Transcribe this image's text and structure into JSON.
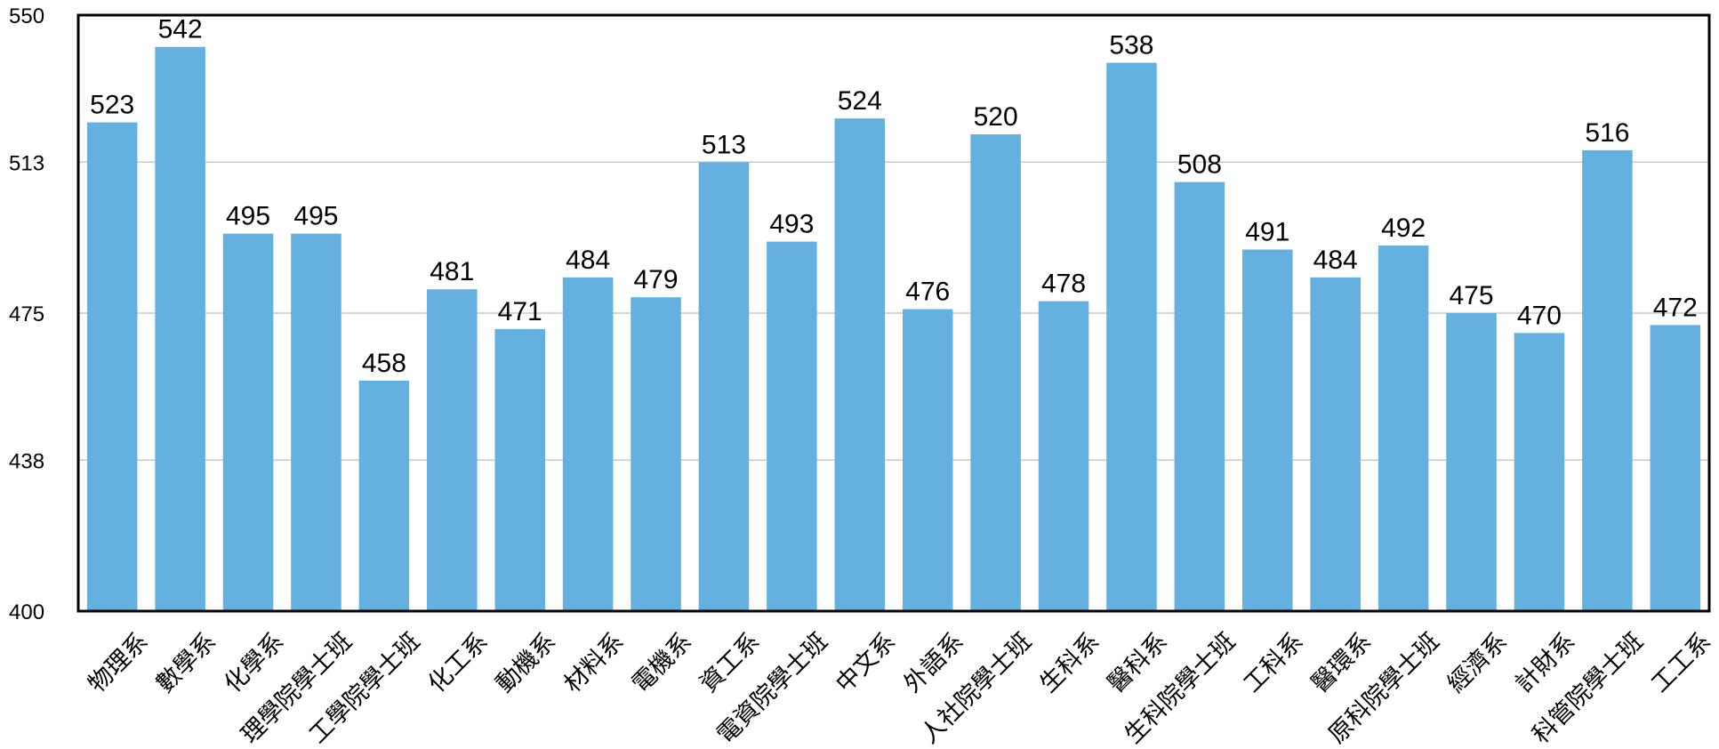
{
  "chart_data": {
    "type": "bar",
    "categories": [
      "物理系",
      "數學系",
      "化學系",
      "理學院學士班",
      "工學院學士班",
      "化工系",
      "動機系",
      "材料系",
      "電機系",
      "資工系",
      "電資院學士班",
      "中文系",
      "外語系",
      "人社院學士班",
      "生科系",
      "醫科系",
      "生科院學士班",
      "工科系",
      "醫環系",
      "原科院學士班",
      "經濟系",
      "計財系",
      "科管院學士班",
      "工工系"
    ],
    "values": [
      523,
      542,
      495,
      495,
      458,
      481,
      471,
      484,
      479,
      513,
      493,
      524,
      476,
      520,
      478,
      538,
      508,
      491,
      484,
      492,
      475,
      470,
      516,
      472
    ],
    "ylim": [
      400,
      550
    ],
    "yticks": [
      400,
      438,
      475,
      513,
      550
    ],
    "grid": true,
    "bar_color": "#64b1e0",
    "title": "",
    "xlabel": "",
    "ylabel": ""
  }
}
